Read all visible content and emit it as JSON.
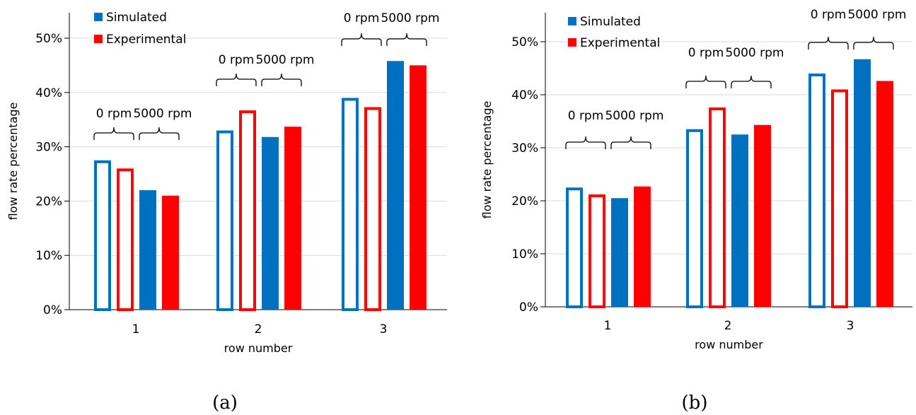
{
  "colors": {
    "simulated": "#0070C0",
    "experimental": "#FF0000",
    "grid": "#D9D9D9",
    "axis": "#000000"
  },
  "chart_data": [
    {
      "type": "bar",
      "panel_label": "(a)",
      "categories": [
        "1",
        "2",
        "3"
      ],
      "xlabel": "row number",
      "ylabel": "flow rate percentage",
      "ylim": [
        0,
        55
      ],
      "yticks": [
        "0%",
        "10%",
        "20%",
        "30%",
        "40%",
        "50%"
      ],
      "grid": true,
      "legend": {
        "position": "top-left",
        "entries": [
          "Simulated",
          "Experimental"
        ]
      },
      "group_labels": [
        "0 rpm",
        "5000 rpm"
      ],
      "series": [
        {
          "name": "Simulated",
          "rpm": "0 rpm",
          "style": "outline",
          "color": "#0070C0",
          "values": [
            27.5,
            33.0,
            39.0
          ]
        },
        {
          "name": "Experimental",
          "rpm": "0 rpm",
          "style": "outline",
          "color": "#FF0000",
          "values": [
            26.0,
            36.7,
            37.3
          ]
        },
        {
          "name": "Simulated",
          "rpm": "5000 rpm",
          "style": "filled",
          "color": "#0070C0",
          "values": [
            22.0,
            31.8,
            45.8
          ]
        },
        {
          "name": "Experimental",
          "rpm": "5000 rpm",
          "style": "filled",
          "color": "#FF0000",
          "values": [
            21.0,
            33.7,
            45.0
          ]
        }
      ]
    },
    {
      "type": "bar",
      "panel_label": "(b)",
      "categories": [
        "1",
        "2",
        "3"
      ],
      "xlabel": "row number",
      "ylabel": "flow rate percentage",
      "ylim": [
        0,
        55
      ],
      "yticks": [
        "0%",
        "10%",
        "20%",
        "30%",
        "40%",
        "50%"
      ],
      "grid": true,
      "legend": {
        "position": "top-left",
        "entries": [
          "Simulated",
          "Experimental"
        ]
      },
      "group_labels": [
        "0 rpm",
        "5000 rpm"
      ],
      "series": [
        {
          "name": "Simulated",
          "rpm": "0 rpm",
          "style": "outline",
          "color": "#0070C0",
          "values": [
            22.5,
            33.5,
            44.0
          ]
        },
        {
          "name": "Experimental",
          "rpm": "0 rpm",
          "style": "outline",
          "color": "#FF0000",
          "values": [
            21.2,
            37.6,
            41.0
          ]
        },
        {
          "name": "Simulated",
          "rpm": "5000 rpm",
          "style": "filled",
          "color": "#0070C0",
          "values": [
            20.5,
            32.5,
            46.7
          ]
        },
        {
          "name": "Experimental",
          "rpm": "5000 rpm",
          "style": "filled",
          "color": "#FF0000",
          "values": [
            22.7,
            34.3,
            42.6
          ]
        }
      ]
    }
  ]
}
